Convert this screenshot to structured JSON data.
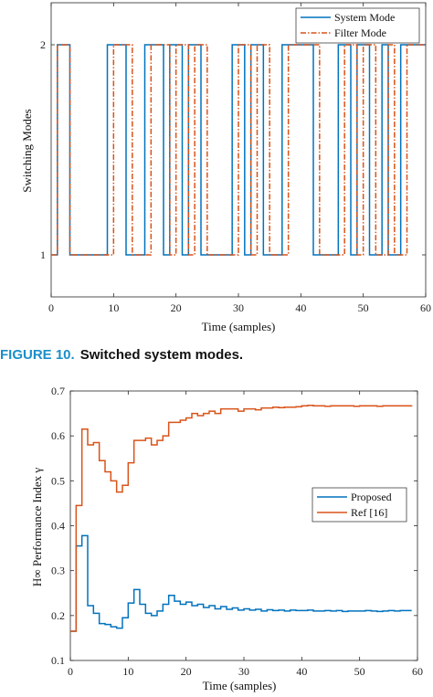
{
  "figure_caption": {
    "label": "FIGURE 10.",
    "text": "Switched system modes."
  },
  "colors": {
    "system_mode": "#0072BD",
    "filter_mode": "#D95319",
    "proposed": "#0072BD",
    "ref16": "#D95319"
  },
  "chart_data": [
    {
      "type": "line",
      "title": "",
      "xlabel": "Time (samples)",
      "ylabel": "Switching Modes",
      "xlim": [
        0,
        60
      ],
      "ylim": [
        0.8,
        2.2
      ],
      "xticks": [
        0,
        10,
        20,
        30,
        40,
        50,
        60
      ],
      "yticks": [
        1,
        2
      ],
      "step": true,
      "legend": "top-right",
      "series": [
        {
          "name": "System Mode",
          "style": "solid",
          "x": [
            0,
            1,
            2,
            3,
            4,
            5,
            6,
            7,
            8,
            9,
            10,
            11,
            12,
            13,
            14,
            15,
            16,
            17,
            18,
            19,
            20,
            21,
            22,
            23,
            24,
            25,
            26,
            27,
            28,
            29,
            30,
            31,
            32,
            33,
            34,
            35,
            36,
            37,
            38,
            39,
            40,
            41,
            42,
            43,
            44,
            45,
            46,
            47,
            48,
            49,
            50,
            51,
            52,
            53,
            54,
            55,
            56,
            57,
            58,
            59,
            60
          ],
          "values": [
            1,
            2,
            2,
            1,
            1,
            1,
            1,
            1,
            1,
            2,
            2,
            2,
            1,
            1,
            1,
            2,
            2,
            2,
            1,
            2,
            2,
            1,
            2,
            2,
            1,
            1,
            1,
            1,
            1,
            2,
            2,
            1,
            2,
            2,
            1,
            1,
            1,
            2,
            2,
            2,
            2,
            2,
            1,
            1,
            1,
            1,
            2,
            2,
            1,
            2,
            2,
            1,
            1,
            2,
            1,
            1,
            2,
            2,
            2,
            2,
            2
          ]
        },
        {
          "name": "Filter Mode",
          "style": "dashdot",
          "x": [
            0,
            1,
            2,
            3,
            4,
            5,
            6,
            7,
            8,
            9,
            10,
            11,
            12,
            13,
            14,
            15,
            16,
            17,
            18,
            19,
            20,
            21,
            22,
            23,
            24,
            25,
            26,
            27,
            28,
            29,
            30,
            31,
            32,
            33,
            34,
            35,
            36,
            37,
            38,
            39,
            40,
            41,
            42,
            43,
            44,
            45,
            46,
            47,
            48,
            49,
            50,
            51,
            52,
            53,
            54,
            55,
            56,
            57,
            58,
            59,
            60
          ],
          "values": [
            1,
            2,
            2,
            1,
            1,
            1,
            1,
            1,
            1,
            1,
            2,
            2,
            2,
            1,
            1,
            1,
            2,
            2,
            2,
            1,
            2,
            2,
            1,
            2,
            2,
            1,
            1,
            1,
            1,
            1,
            2,
            2,
            1,
            2,
            2,
            1,
            1,
            1,
            2,
            2,
            2,
            2,
            2,
            1,
            1,
            1,
            1,
            2,
            2,
            1,
            2,
            2,
            1,
            1,
            2,
            1,
            1,
            2,
            2,
            2,
            2
          ]
        }
      ]
    },
    {
      "type": "line",
      "title": "",
      "xlabel": "Time (samples)",
      "ylabel": "H∞ Performance Index γ",
      "xlim": [
        0,
        60
      ],
      "ylim": [
        0.1,
        0.7
      ],
      "xticks": [
        0,
        10,
        20,
        30,
        40,
        50,
        60
      ],
      "yticks": [
        0.1,
        0.2,
        0.3,
        0.4,
        0.5,
        0.6,
        0.7
      ],
      "step": true,
      "legend": "right",
      "series": [
        {
          "name": "Proposed",
          "x": [
            0,
            1,
            2,
            3,
            4,
            5,
            6,
            7,
            8,
            9,
            10,
            11,
            12,
            13,
            14,
            15,
            16,
            17,
            18,
            19,
            20,
            21,
            22,
            23,
            24,
            25,
            26,
            27,
            28,
            29,
            30,
            31,
            32,
            33,
            34,
            35,
            36,
            37,
            38,
            39,
            40,
            41,
            42,
            43,
            44,
            45,
            46,
            47,
            48,
            49,
            50,
            51,
            52,
            53,
            54,
            55,
            56,
            57,
            58,
            59
          ],
          "values": [
            0.165,
            0.355,
            0.378,
            0.222,
            0.205,
            0.182,
            0.18,
            0.175,
            0.172,
            0.195,
            0.228,
            0.258,
            0.225,
            0.205,
            0.2,
            0.21,
            0.225,
            0.245,
            0.232,
            0.225,
            0.23,
            0.222,
            0.225,
            0.218,
            0.222,
            0.215,
            0.22,
            0.214,
            0.217,
            0.212,
            0.215,
            0.212,
            0.214,
            0.21,
            0.213,
            0.211,
            0.212,
            0.21,
            0.212,
            0.211,
            0.211,
            0.212,
            0.21,
            0.21,
            0.211,
            0.21,
            0.211,
            0.209,
            0.21,
            0.21,
            0.21,
            0.211,
            0.21,
            0.209,
            0.21,
            0.211,
            0.21,
            0.211,
            0.211,
            0.211
          ]
        },
        {
          "name": "Ref [16]",
          "x": [
            0,
            1,
            2,
            3,
            4,
            5,
            6,
            7,
            8,
            9,
            10,
            11,
            12,
            13,
            14,
            15,
            16,
            17,
            18,
            19,
            20,
            21,
            22,
            23,
            24,
            25,
            26,
            27,
            28,
            29,
            30,
            31,
            32,
            33,
            34,
            35,
            36,
            37,
            38,
            39,
            40,
            41,
            42,
            43,
            44,
            45,
            46,
            47,
            48,
            49,
            50,
            51,
            52,
            53,
            54,
            55,
            56,
            57,
            58,
            59
          ],
          "values": [
            0.165,
            0.445,
            0.615,
            0.58,
            0.585,
            0.545,
            0.52,
            0.5,
            0.475,
            0.49,
            0.54,
            0.59,
            0.59,
            0.595,
            0.58,
            0.59,
            0.6,
            0.63,
            0.63,
            0.635,
            0.64,
            0.65,
            0.645,
            0.65,
            0.655,
            0.65,
            0.66,
            0.66,
            0.66,
            0.655,
            0.66,
            0.66,
            0.658,
            0.662,
            0.662,
            0.664,
            0.663,
            0.664,
            0.664,
            0.665,
            0.667,
            0.668,
            0.667,
            0.667,
            0.666,
            0.667,
            0.667,
            0.667,
            0.667,
            0.666,
            0.667,
            0.667,
            0.667,
            0.666,
            0.667,
            0.667,
            0.667,
            0.667,
            0.667,
            0.668
          ]
        }
      ]
    }
  ]
}
